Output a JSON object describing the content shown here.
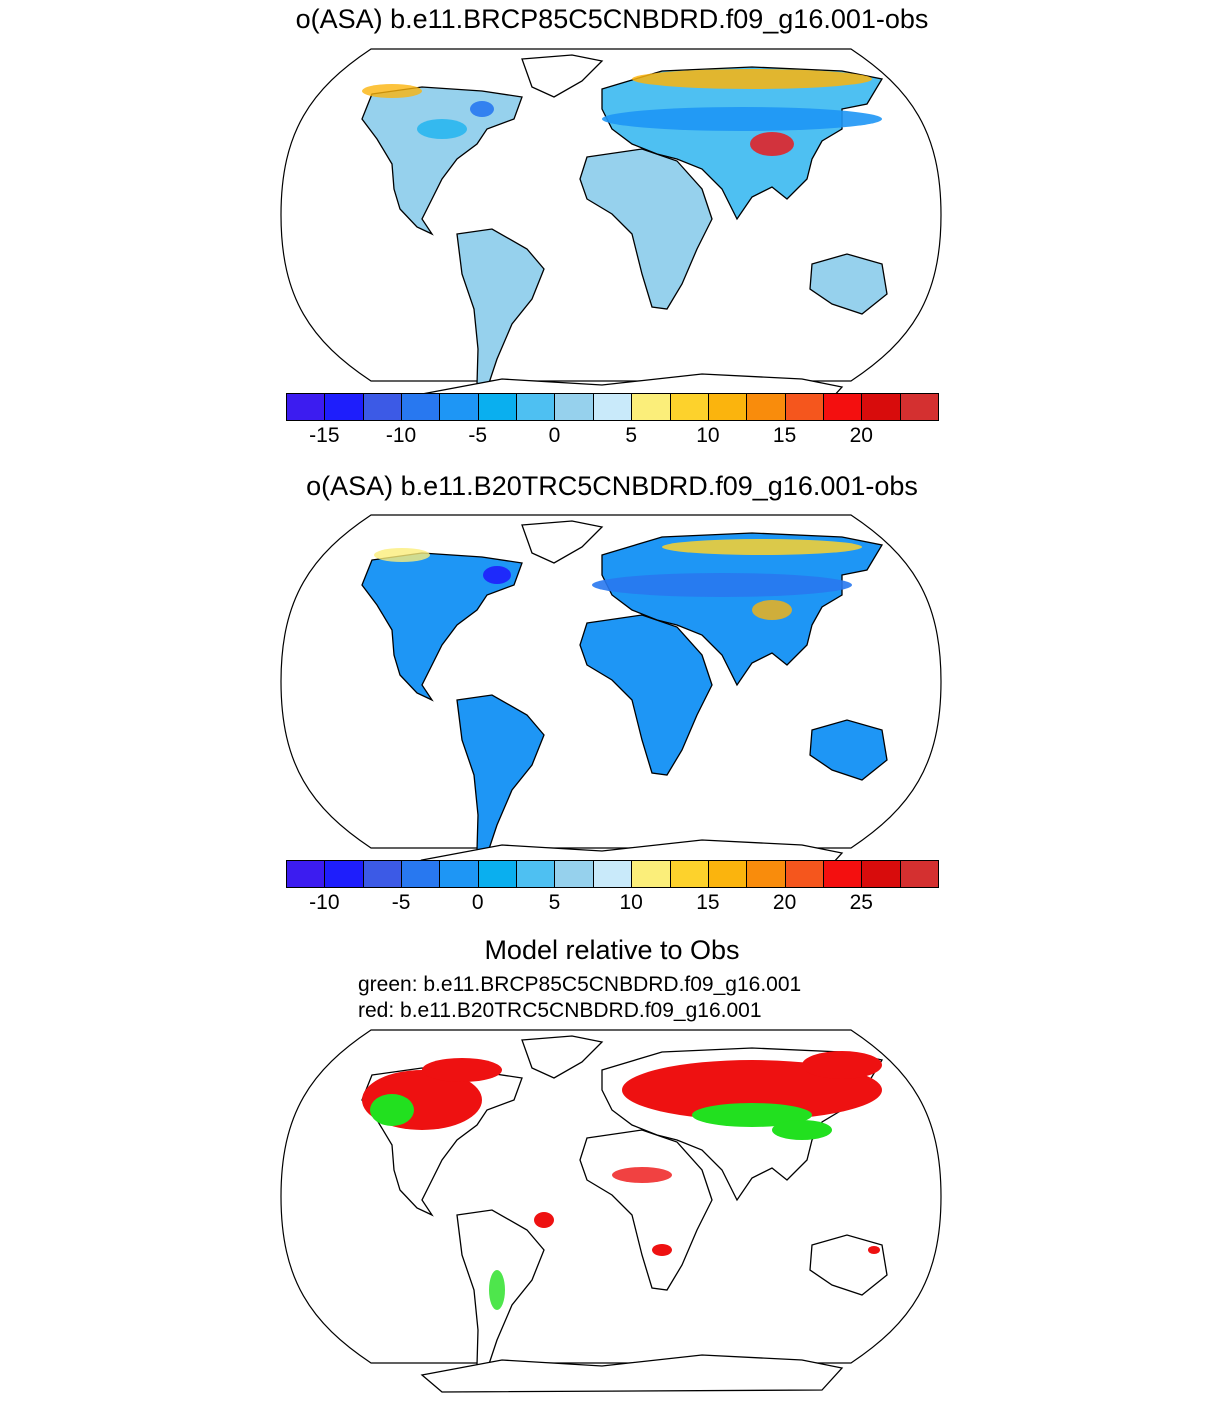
{
  "panels": [
    {
      "title": "o(ASA) b.e11.BRCP85C5CNBDRD.f09_g16.001-obs",
      "colorbar": {
        "colors": [
          "#3c1cf0",
          "#1e1efc",
          "#3c5ae6",
          "#2878f0",
          "#1e96f5",
          "#0aafef",
          "#4ec0f2",
          "#96d1ed",
          "#c9eafa",
          "#fbee7a",
          "#fdd22c",
          "#fbb40d",
          "#f98c0c",
          "#f5561d",
          "#f40f0f",
          "#d80c0c",
          "#d43030"
        ],
        "ticks": [
          "-15",
          "-10",
          "-5",
          "0",
          "5",
          "10",
          "15",
          "20"
        ]
      }
    },
    {
      "title": "o(ASA) b.e11.B20TRC5CNBDRD.f09_g16.001-obs",
      "colorbar": {
        "colors": [
          "#3c1cf0",
          "#1e1efc",
          "#3c5ae6",
          "#2878f0",
          "#1e96f5",
          "#0aafef",
          "#4ec0f2",
          "#96d1ed",
          "#c9eafa",
          "#fbee7a",
          "#fdd22c",
          "#fbb40d",
          "#f98c0c",
          "#f5561d",
          "#f40f0f",
          "#d80c0c",
          "#d43030"
        ],
        "ticks": [
          "-10",
          "-5",
          "0",
          "5",
          "10",
          "15",
          "20",
          "25"
        ]
      }
    }
  ],
  "comparison": {
    "title": "Model relative to Obs",
    "green_line": "green: b.e11.BRCP85C5CNBDRD.f09_g16.001",
    "red_line": "red: b.e11.B20TRC5CNBDRD.f09_g16.001",
    "colors": {
      "green": "#22e01f",
      "red": "#ee1111"
    }
  }
}
